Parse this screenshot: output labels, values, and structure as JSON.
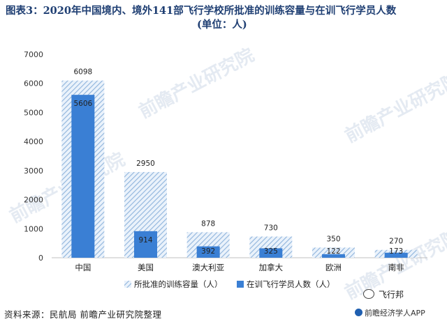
{
  "title": {
    "line1": "图表3：2020年中国境内、境外141部飞行学校所批准的训练容量与在训飞行学员人数",
    "line2": "(单位：人)"
  },
  "chart_data": {
    "type": "bar",
    "title": "图表3：2020年中国境内、境外141部飞行学校所批准的训练容量与在训飞行学员人数(单位：人)",
    "categories": [
      "中国",
      "美国",
      "澳大利亚",
      "加拿大",
      "欧洲",
      "南非"
    ],
    "series": [
      {
        "name": "所批准的训练容量（人）",
        "values": [
          6098,
          2950,
          878,
          730,
          350,
          270
        ],
        "color": "#9ebfe0",
        "pattern": "diagonal-hatch"
      },
      {
        "name": "在训飞行学员人数（人）",
        "values": [
          5606,
          914,
          392,
          325,
          122,
          173
        ],
        "color": "#3a7fd4"
      }
    ],
    "y_ticks": [
      "0",
      "1000",
      "2000",
      "3000",
      "4000",
      "5000",
      "6000",
      "7000"
    ],
    "ylim": [
      0,
      7000
    ],
    "grid": false,
    "legend": "bottom"
  },
  "footer": {
    "source": "资料来源：民航局 前瞻产业研究院整理",
    "brand": "前瞻经济学人APP",
    "wechat_label": "飞行邦"
  },
  "watermark": "前瞻产业研究院",
  "colors": {
    "title": "#1f3f73",
    "capacity": "#9ebfe0",
    "students": "#3a7fd4"
  }
}
